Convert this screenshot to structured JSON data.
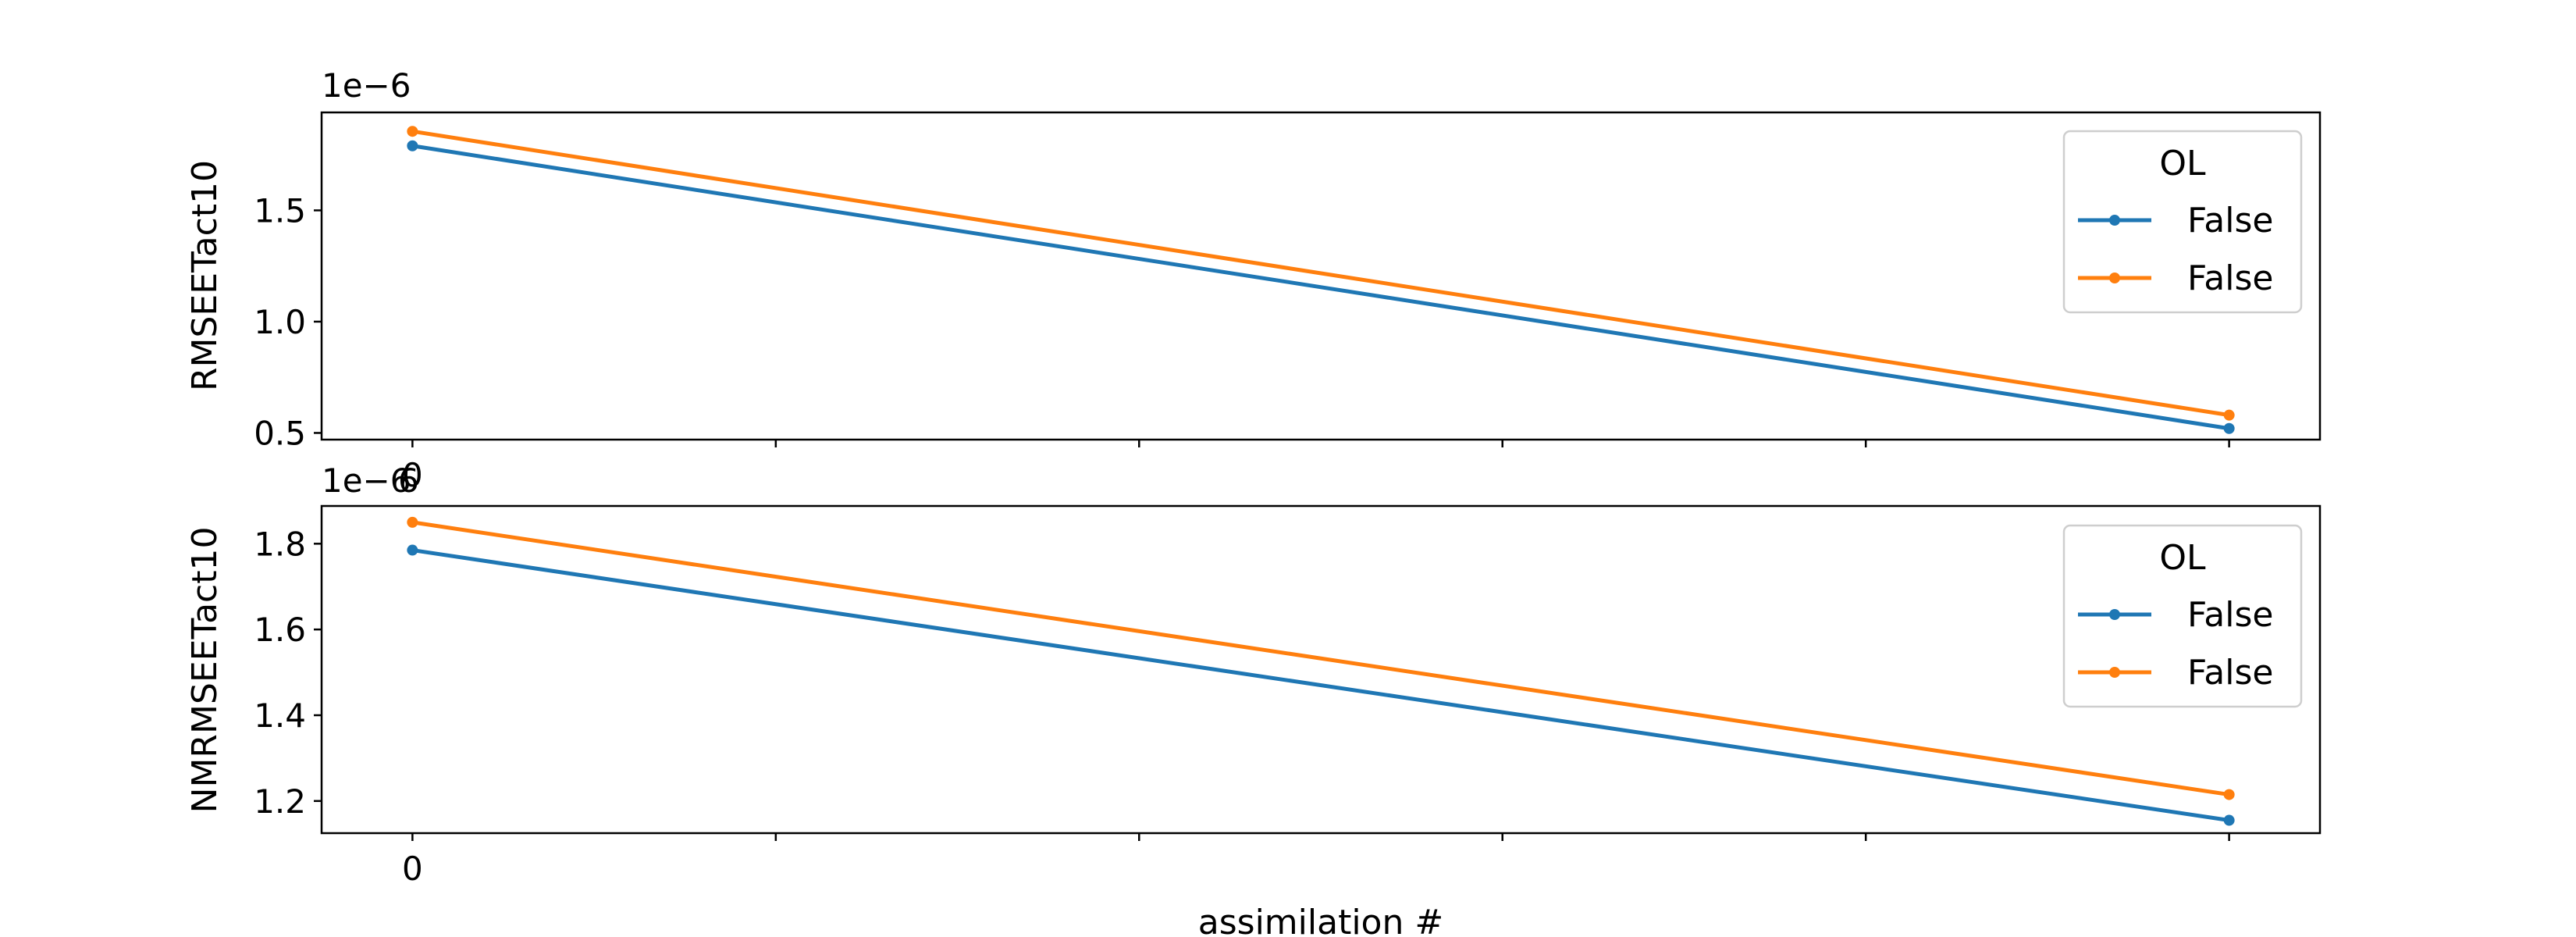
{
  "chart_data": [
    {
      "type": "line",
      "xlabel": "",
      "ylabel": "RMSEETact10",
      "offset_text": "1e−6",
      "x_tick_labels": [
        "0",
        "",
        "",
        "",
        "",
        ""
      ],
      "ylim": [
        0.47,
        1.94
      ],
      "yticks": [
        0.5,
        1.0,
        1.5
      ],
      "ytick_labels": [
        "0.5",
        "1.0",
        "1.5"
      ],
      "legend": {
        "title": "OL",
        "placement": "upper right"
      },
      "series": [
        {
          "name": "False",
          "color": "#1f77b4",
          "x": [
            0,
            5
          ],
          "y": [
            1.79,
            0.52
          ]
        },
        {
          "name": "False",
          "color": "#ff7f0e",
          "x": [
            0,
            5
          ],
          "y": [
            1.855,
            0.58
          ]
        }
      ]
    },
    {
      "type": "line",
      "xlabel": "assimilation #",
      "ylabel": "NMRMSEETact10",
      "offset_text": "1e−6",
      "offset_text_overlap": "6",
      "x_tick_labels": [
        "0",
        "",
        "",
        "",
        "",
        ""
      ],
      "ylim": [
        1.125,
        1.888
      ],
      "yticks": [
        1.2,
        1.4,
        1.6,
        1.8
      ],
      "ytick_labels": [
        "1.2",
        "1.4",
        "1.6",
        "1.8"
      ],
      "legend": {
        "title": "OL",
        "placement": "upper right"
      },
      "series": [
        {
          "name": "False",
          "color": "#1f77b4",
          "x": [
            0,
            5
          ],
          "y": [
            1.785,
            1.155
          ]
        },
        {
          "name": "False",
          "color": "#ff7f0e",
          "x": [
            0,
            5
          ],
          "y": [
            1.85,
            1.215
          ]
        }
      ]
    }
  ]
}
